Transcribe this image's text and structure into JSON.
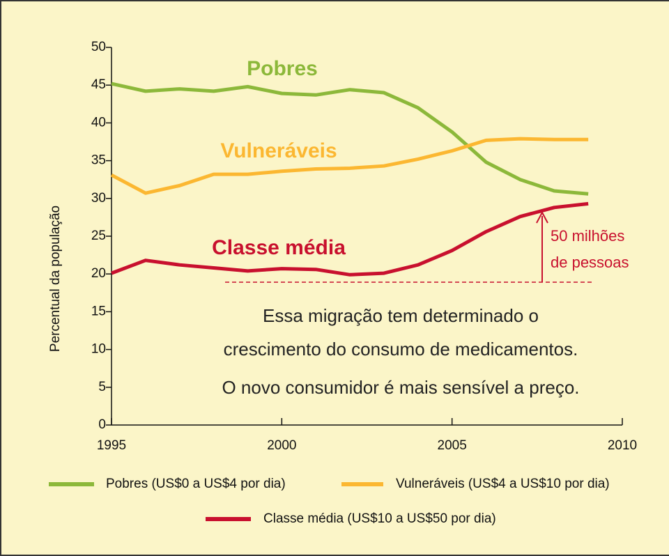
{
  "chart_data": {
    "type": "line",
    "y_label": "Percentual da população",
    "x": [
      1995,
      1996,
      1997,
      1998,
      1999,
      2000,
      2001,
      2002,
      2003,
      2004,
      2005,
      2006,
      2007,
      2008,
      2009
    ],
    "series": [
      {
        "name": "Pobres (US$0 a US$4 por dia)",
        "color": "#8cb83a",
        "values": [
          45.2,
          44.2,
          44.5,
          44.2,
          44.8,
          43.9,
          43.7,
          44.4,
          44.0,
          42.0,
          38.8,
          34.8,
          32.5,
          31.0,
          30.6
        ]
      },
      {
        "name": "Vulneráveis (US$4 a US$10 por dia)",
        "color": "#fbb731",
        "values": [
          33.1,
          30.7,
          31.7,
          33.2,
          33.2,
          33.6,
          33.9,
          34.0,
          34.3,
          35.2,
          36.3,
          37.7,
          37.9,
          37.8,
          37.8
        ]
      },
      {
        "name": "Classe média (US$10 a US$50 por dia)",
        "color": "#c8102e",
        "values": [
          20.1,
          21.8,
          21.2,
          20.8,
          20.4,
          20.7,
          20.6,
          19.9,
          20.1,
          21.2,
          23.1,
          25.6,
          27.6,
          28.8,
          29.3
        ]
      }
    ],
    "xlim": [
      1995,
      2010
    ],
    "xticks": [
      1995,
      2000,
      2005,
      2010
    ],
    "ylim": [
      0,
      50
    ],
    "yticks": [
      0,
      5,
      10,
      15,
      20,
      25,
      30,
      35,
      40,
      45,
      50
    ],
    "annotations": [
      {
        "text": "Pobres",
        "color": "#8cb83a"
      },
      {
        "text": "Vulneráveis",
        "color": "#fbb731"
      },
      {
        "text": "Classe média",
        "color": "#c8102e"
      },
      {
        "text": "50 milhões",
        "color": "#c8102e"
      },
      {
        "text": "de pessoas",
        "color": "#c8102e"
      },
      {
        "text": "Essa migração tem determinado o",
        "color": "#222222"
      },
      {
        "text": "crescimento do consumo de medicamentos.",
        "color": "#222222"
      },
      {
        "text": "O novo consumidor é mais sensível a preço.",
        "color": "#222222"
      }
    ]
  }
}
